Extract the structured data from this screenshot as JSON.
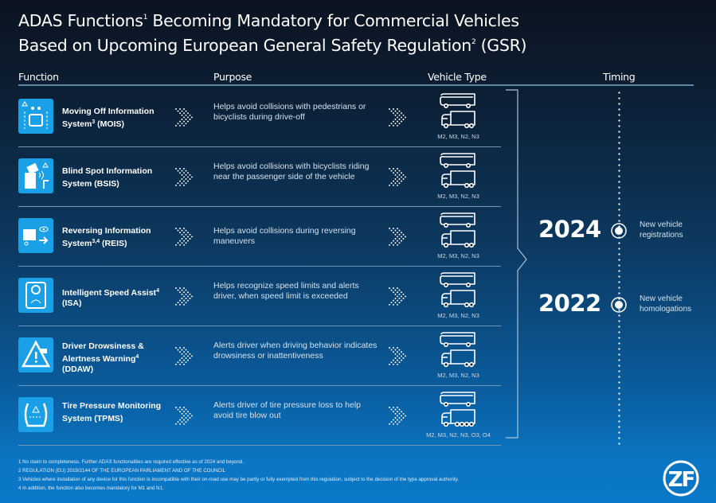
{
  "title": {
    "line1_a": "ADAS Functions",
    "line1_sup": "1",
    "line1_b": " Becoming Mandatory for Commercial Vehicles",
    "line2_a": "Based on Upcoming European General Safety Regulation",
    "line2_sup": "2",
    "line2_b": " (GSR)"
  },
  "headers": {
    "function": "Function",
    "purpose": "Purpose",
    "vehicle_type": "Vehicle Type",
    "timing": "Timing"
  },
  "rows": [
    {
      "icon": "moving-off-icon",
      "name": "Moving Off Information System",
      "sup": "3",
      "abbr": " (MOIS)",
      "purpose": "Helps avoid collisions with pedestrians or bicyclists during drive-off",
      "vehicles": "M2, M3, N2, N3"
    },
    {
      "icon": "blind-spot-icon",
      "name": "Blind Spot Information System",
      "sup": "",
      "abbr": " (BSIS)",
      "purpose": "Helps avoid collisions with bicyclists riding near the passenger side of the vehicle",
      "vehicles": "M2, M3, N2, N3"
    },
    {
      "icon": "reversing-icon",
      "name": "Reversing Information System",
      "sup": "3,4",
      "abbr": " (REIS)",
      "purpose": "Helps avoid collisions during reversing maneuvers",
      "vehicles": "M2, M3, N2, N3"
    },
    {
      "icon": "speed-assist-icon",
      "name": "Intelligent Speed Assist",
      "sup": "4",
      "abbr": " (ISA)",
      "purpose": "Helps recognize speed limits and alerts driver, when speed limit is exceeded",
      "vehicles": "M2, M3, N2, N3"
    },
    {
      "icon": "drowsiness-warning-icon",
      "name": "Driver Drowsiness & Alertness Warning",
      "sup": "4",
      "abbr": " (DDAW)",
      "purpose": "Alerts driver when driving behavior indicates drowsiness or inattentiveness",
      "vehicles": "M2, M3, N2, N3"
    },
    {
      "icon": "tire-pressure-icon",
      "name": "Tire Pressure Monitoring System",
      "sup": "",
      "abbr": " (TPMS)",
      "purpose": "Alerts driver of tire pressure loss to help avoid tire blow out",
      "vehicles": "M2, M3, N2, N3, O3, O4"
    }
  ],
  "timing": [
    {
      "year": "2024",
      "label": "New vehicle registrations"
    },
    {
      "year": "2022",
      "label": "New vehicle homologations"
    }
  ],
  "footnotes": [
    "1 No claim to completeness. Further ADAS functionalities are required effective as of 2024 and beyond.",
    "2 REGULATION (EU) 2019/2144 OF THE EUROPEAN PARLIAMENT AND OF THE COUNCIL",
    "3 Vehicles where installation of any device for this function is incompatible with their on-road use may be partly or fully exempted from this regulation, subject to the decision of the type approval authority.",
    "4 In addition, the function also becomes mandatory for M1 and N1."
  ],
  "logo": "ZF",
  "colors": {
    "icon_bg": "#1aa0e6",
    "footer_bg": "#0a78c8"
  }
}
